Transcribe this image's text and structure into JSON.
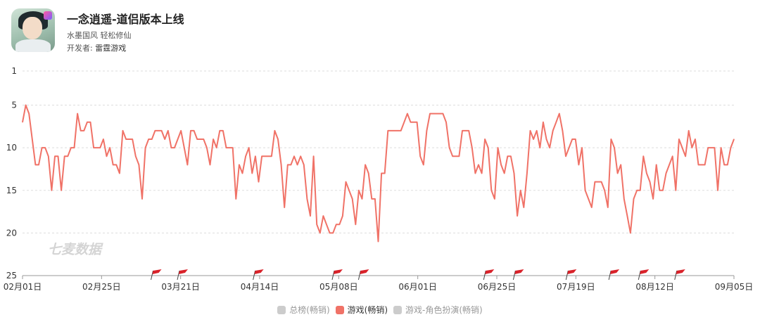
{
  "app": {
    "title": "一念逍遥-道侣版本上线",
    "subtitle": "水墨国风 轻松修仙",
    "developer_prefix": "开发者: ",
    "developer_name": "雷霆游戏"
  },
  "watermark": "七麦数据",
  "colors": {
    "line": "#F07267",
    "grid": "#dddddd",
    "axis": "#999999",
    "flag": "#d9222a",
    "inactive": "#cccccc",
    "text": "#333333"
  },
  "chart_data": {
    "type": "line",
    "ylim": [
      1,
      25
    ],
    "y_inverted": true,
    "y_ticks": [
      1,
      5,
      10,
      15,
      20,
      25
    ],
    "x_ticks": [
      "02月01日",
      "02月25日",
      "03月21日",
      "04月14日",
      "05月08日",
      "06月01日",
      "06月25日",
      "07月19日",
      "08月12日",
      "09月05日"
    ],
    "grid": "horizontal-dashed",
    "legend_position": "bottom-center",
    "legend": [
      {
        "name": "总榜(畅销)",
        "active": false
      },
      {
        "name": "游戏(畅销)",
        "active": true
      },
      {
        "name": "游戏-角色扮演(畅销)",
        "active": false
      }
    ],
    "series": [
      {
        "name": "游戏(畅销)",
        "start_date": "02月01日",
        "values": [
          7,
          5,
          6,
          9,
          12,
          12,
          10,
          10,
          11,
          15,
          11,
          11,
          15,
          11,
          11,
          10,
          10,
          6,
          8,
          8,
          7,
          7,
          10,
          10,
          10,
          9,
          11,
          10,
          12,
          12,
          13,
          8,
          9,
          9,
          9,
          11,
          12,
          16,
          10,
          9,
          9,
          8,
          8,
          8,
          9,
          8,
          10,
          10,
          9,
          8,
          10,
          12,
          8,
          8,
          9,
          9,
          9,
          10,
          12,
          9,
          10,
          8,
          8,
          10,
          10,
          10,
          16,
          12,
          13,
          11,
          10,
          13,
          11,
          14,
          11,
          11,
          11,
          11,
          8,
          9,
          12,
          17,
          12,
          12,
          11,
          12,
          11,
          12,
          16,
          18,
          11,
          19,
          20,
          18,
          19,
          20,
          20,
          19,
          19,
          18,
          14,
          15,
          16,
          19,
          15,
          16,
          12,
          13,
          16,
          16,
          21,
          13,
          13,
          8,
          8,
          8,
          8,
          8,
          7,
          6,
          7,
          7,
          7,
          11,
          12,
          8,
          6,
          6,
          6,
          6,
          6,
          7,
          10,
          11,
          11,
          11,
          8,
          8,
          8,
          10,
          13,
          12,
          13,
          9,
          10,
          15,
          16,
          10,
          12,
          13,
          11,
          11,
          13,
          18,
          15,
          17,
          13,
          8,
          9,
          8,
          10,
          7,
          9,
          10,
          8,
          7,
          6,
          8,
          11,
          10,
          9,
          9,
          12,
          10,
          15,
          16,
          17,
          14,
          14,
          14,
          15,
          17,
          9,
          10,
          13,
          12,
          16,
          18,
          20,
          16,
          15,
          15,
          11,
          13,
          14,
          16,
          12,
          15,
          15,
          13,
          12,
          11,
          15,
          9,
          10,
          11,
          8,
          10,
          9,
          12,
          12,
          12,
          10,
          10,
          10,
          15,
          10,
          12,
          12,
          10,
          9
        ]
      }
    ],
    "event_flags": [
      "03月12日",
      "03月20日",
      "04月12日",
      "05月06日",
      "05月14日",
      "06月21日",
      "06月30日",
      "07月16日",
      "07月29日",
      "08月07日",
      "08月18日"
    ]
  }
}
